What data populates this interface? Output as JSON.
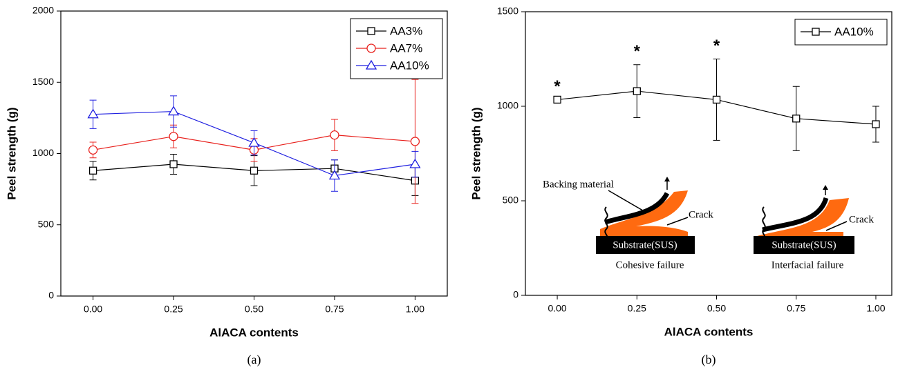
{
  "chart_data": [
    {
      "type": "line",
      "caption": "(a)",
      "xlabel": "AlACA contents",
      "ylabel": "Peel strength (g)",
      "xlim": [
        -0.1,
        1.1
      ],
      "ylim": [
        0,
        2000
      ],
      "xticks": [
        {
          "value": 0,
          "label": "0.00"
        },
        {
          "value": 0.25,
          "label": "0.25"
        },
        {
          "value": 0.5,
          "label": "0.50"
        },
        {
          "value": 0.75,
          "label": "0.75"
        },
        {
          "value": 1,
          "label": "1.00"
        }
      ],
      "yticks": [
        0,
        500,
        1000,
        1500,
        2000
      ],
      "legend": "upper right",
      "x": [
        0,
        0.25,
        0.5,
        0.75,
        1
      ],
      "series": [
        {
          "name": "AA3%",
          "color": "#000000",
          "marker": "square",
          "values": [
            880,
            925,
            880,
            895,
            810
          ],
          "errors": [
            65,
            70,
            105,
            60,
            105
          ]
        },
        {
          "name": "AA7%",
          "color": "#e8201c",
          "marker": "circle",
          "values": [
            1025,
            1120,
            1025,
            1130,
            1085
          ],
          "errors": [
            55,
            80,
            80,
            110,
            435
          ]
        },
        {
          "name": "AA10%",
          "color": "#1f1fe0",
          "marker": "triangle",
          "values": [
            1275,
            1295,
            1075,
            845,
            925
          ],
          "errors": [
            100,
            110,
            85,
            110,
            90
          ]
        }
      ]
    },
    {
      "type": "line",
      "caption": "(b)",
      "xlabel": "AlACA contents",
      "ylabel": "Peel strength (g)",
      "xlim": [
        -0.1,
        1.05
      ],
      "ylim": [
        0,
        1500
      ],
      "xticks": [
        {
          "value": 0,
          "label": "0.00"
        },
        {
          "value": 0.25,
          "label": "0.25"
        },
        {
          "value": 0.5,
          "label": "0.50"
        },
        {
          "value": 0.75,
          "label": "0.75"
        },
        {
          "value": 1,
          "label": "1.00"
        }
      ],
      "yticks": [
        0,
        500,
        1000,
        1500
      ],
      "legend": "upper right",
      "x": [
        0,
        0.25,
        0.5,
        0.75,
        1
      ],
      "series": [
        {
          "name": "AA10%",
          "color": "#000000",
          "marker": "square",
          "values": [
            1035,
            1080,
            1035,
            935,
            905
          ],
          "errors": [
            null,
            140,
            215,
            170,
            95
          ]
        }
      ],
      "significance": [
        {
          "x": 0,
          "label": "*"
        },
        {
          "x": 0.25,
          "label": "*"
        },
        {
          "x": 0.5,
          "label": "*"
        }
      ],
      "insets": [
        {
          "backing": "Backing material",
          "crack": "Crack",
          "substrate": "Substrate(SUS)",
          "label": "Cohesive failure"
        },
        {
          "crack": "Crack",
          "substrate": "Substrate(SUS)",
          "label": "Interfacial failure"
        }
      ]
    }
  ]
}
